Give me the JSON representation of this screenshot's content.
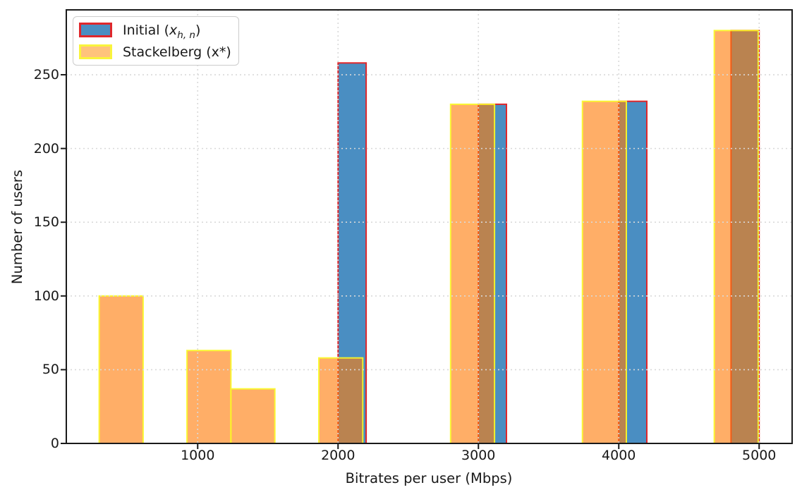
{
  "figure": {
    "xlabel": "Bitrates per user (Mbps)",
    "ylabel": "Number of users"
  },
  "legend": {
    "initial": {
      "prefix": "Initial (",
      "var": "x",
      "sub": "h, n",
      "suffix": ")"
    },
    "stackelberg": "Stackelberg (x*)"
  },
  "chart_data": {
    "type": "bar",
    "title": "",
    "xlabel": "Bitrates per user (Mbps)",
    "ylabel": "Number of users",
    "xlim": [
      64,
      5235
    ],
    "ylim": [
      0,
      294
    ],
    "xticks": [
      1000,
      2000,
      3000,
      4000,
      5000
    ],
    "yticks": [
      0,
      50,
      100,
      150,
      200,
      250
    ],
    "grid": "dotted both axes, drawn above bars",
    "legend_position": "upper left",
    "series": [
      {
        "name": "Initial (x_h,n)",
        "style": {
          "fill": "#4A8EC2",
          "edge": "#E0272B",
          "legend_fill": "#4A8EC2",
          "legend_edge": "#E0272B"
        },
        "bars": [
          {
            "x0": 2000,
            "x1": 2200,
            "count": 258
          },
          {
            "x0": 3000,
            "x1": 3200,
            "count": 230
          },
          {
            "x0": 4000,
            "x1": 4200,
            "count": 232
          },
          {
            "x0": 4800,
            "x1": 5000,
            "count": 280
          }
        ]
      },
      {
        "name": "Stackelberg (x*)",
        "style": {
          "fill": "rgba(255,125,10,0.62)",
          "edge": "rgba(250,250,40,0.92)",
          "legend_fill": "#FFC37C",
          "legend_edge": "#F9F43C"
        },
        "bars": [
          {
            "x0": 298,
            "x1": 611,
            "count": 100
          },
          {
            "x0": 924,
            "x1": 1237,
            "count": 63
          },
          {
            "x0": 1237,
            "x1": 1550,
            "count": 37
          },
          {
            "x0": 1863,
            "x1": 2176,
            "count": 58
          },
          {
            "x0": 2802,
            "x1": 3115,
            "count": 230
          },
          {
            "x0": 3741,
            "x1": 4054,
            "count": 232
          },
          {
            "x0": 4680,
            "x1": 4993,
            "count": 280
          }
        ]
      }
    ]
  }
}
